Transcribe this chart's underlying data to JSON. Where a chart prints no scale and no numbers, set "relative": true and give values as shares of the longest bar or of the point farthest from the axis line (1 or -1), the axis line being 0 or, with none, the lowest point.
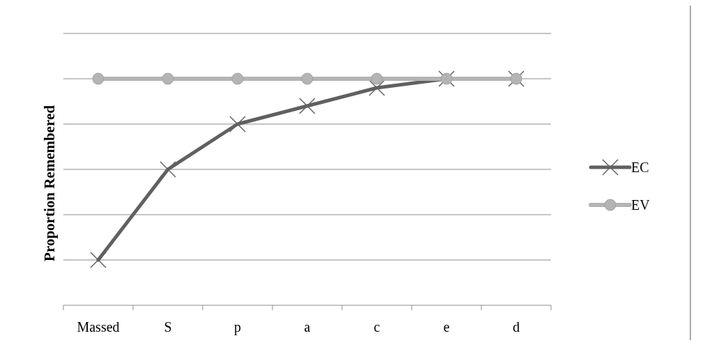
{
  "chart_data": {
    "type": "line",
    "relative": true,
    "ylabel": "Proportion Remembered",
    "categories": [
      "Massed",
      "S",
      "p",
      "a",
      "c",
      "e",
      "d"
    ],
    "series": [
      {
        "name": "EC",
        "color": "#606060",
        "marker": "cross",
        "values": [
          0.2,
          0.6,
          0.8,
          0.88,
          0.96,
          1,
          1
        ]
      },
      {
        "name": "EV",
        "color": "#b4b4b4",
        "marker": "circle",
        "values": [
          1,
          1,
          1,
          1,
          1,
          1,
          1
        ]
      }
    ],
    "grid": "y",
    "legend": "right"
  }
}
